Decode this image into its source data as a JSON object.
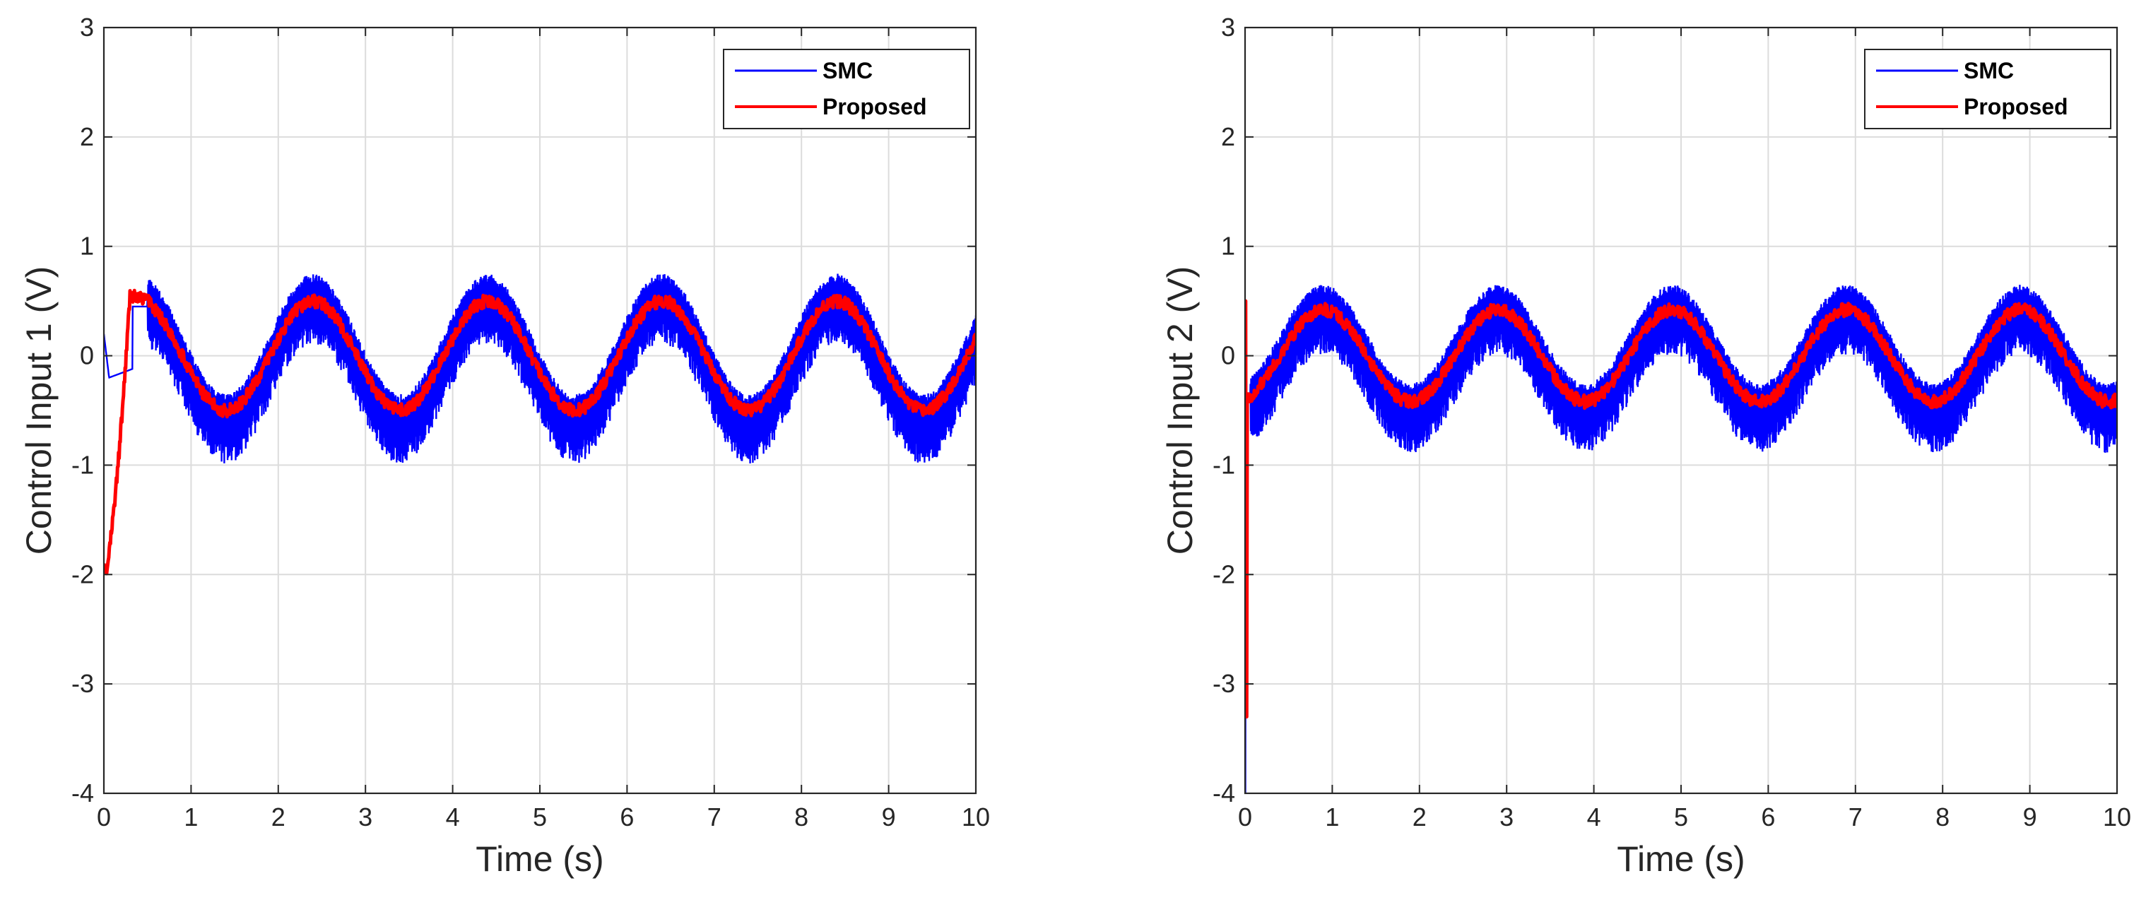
{
  "chart_data": [
    {
      "type": "line",
      "title": "",
      "xlabel": "Time (s)",
      "ylabel": "Control Input 1 (V)",
      "xlim": [
        0,
        10
      ],
      "ylim": [
        -4,
        3
      ],
      "xticks": [
        "0",
        "1",
        "2",
        "3",
        "4",
        "5",
        "6",
        "7",
        "8",
        "9",
        "10"
      ],
      "yticks": [
        "3",
        "2",
        "1",
        "0",
        "-1",
        "-2",
        "-3",
        "-4"
      ],
      "grid": true,
      "legend_position": "top-right",
      "series": [
        {
          "name": "SMC",
          "color": "#0000ff",
          "description": "chattering sinusoid, center amplitude ~0.45 V, period 2 s, peak near t=2.4, 4.4, 6.4, 8.4; chatter band ~0.4 V",
          "x": [
            0,
            0.05,
            0.3,
            0.35,
            0.5,
            0.9,
            1.5,
            2.4,
            3.5,
            4.4,
            5.5,
            6.4,
            7.5,
            8.4,
            9.5,
            10
          ],
          "y": [
            0.2,
            -0.2,
            -0.12,
            0.4,
            0.45,
            0.25,
            -0.45,
            0.45,
            -0.45,
            0.45,
            -0.45,
            0.45,
            -0.45,
            0.45,
            -0.45,
            0.0
          ],
          "chatter_band": 0.4
        },
        {
          "name": "Proposed",
          "color": "#ff0000",
          "description": "smooth sinusoid amplitude ~0.5 V following initial transient down to -2 V",
          "x": [
            0,
            0.03,
            0.3,
            0.5,
            1.5,
            2.4,
            3.5,
            4.4,
            5.5,
            6.4,
            7.5,
            8.4,
            9.5,
            10
          ],
          "y": [
            -1.9,
            -2.0,
            0.55,
            0.5,
            -0.5,
            0.5,
            -0.5,
            0.5,
            -0.5,
            0.5,
            -0.5,
            0.5,
            -0.5,
            0.05
          ]
        }
      ]
    },
    {
      "type": "line",
      "title": "",
      "xlabel": "Time (s)",
      "ylabel": "Control Input 2 (V)",
      "xlim": [
        0,
        10
      ],
      "ylim": [
        -4,
        3
      ],
      "xticks": [
        "0",
        "1",
        "2",
        "3",
        "4",
        "5",
        "6",
        "7",
        "8",
        "9",
        "10"
      ],
      "yticks": [
        "3",
        "2",
        "1",
        "0",
        "-1",
        "-2",
        "-3",
        "-4"
      ],
      "grid": true,
      "legend_position": "top-right",
      "series": [
        {
          "name": "SMC",
          "color": "#0000ff",
          "description": "chattering sinusoid, center amplitude ~0.45 V, period 2 s, peak near t=0.9, 2.9, 4.9, 6.9, 8.9; initial spike down to -4 V",
          "x": [
            0,
            0.02,
            0.05,
            0.9,
            2.0,
            2.9,
            4.0,
            4.9,
            6.0,
            6.9,
            8.0,
            8.9,
            10
          ],
          "y": [
            -0.2,
            -4.0,
            -0.4,
            0.45,
            -0.45,
            0.45,
            -0.45,
            0.45,
            -0.45,
            0.45,
            -0.45,
            0.45,
            -0.45
          ],
          "chatter_band": 0.4
        },
        {
          "name": "Proposed",
          "color": "#ff0000",
          "description": "smooth sinusoid amplitude ~0.45 V, initial spike between 0.5 and -3.3 V at t=0",
          "x": [
            0,
            0.01,
            0.03,
            0.9,
            2.0,
            2.9,
            4.0,
            4.9,
            6.0,
            6.9,
            8.0,
            8.9,
            10
          ],
          "y": [
            0.5,
            -3.3,
            -0.35,
            0.4,
            -0.4,
            0.4,
            -0.4,
            0.4,
            -0.4,
            0.4,
            -0.4,
            0.4,
            -0.4
          ]
        }
      ]
    }
  ]
}
